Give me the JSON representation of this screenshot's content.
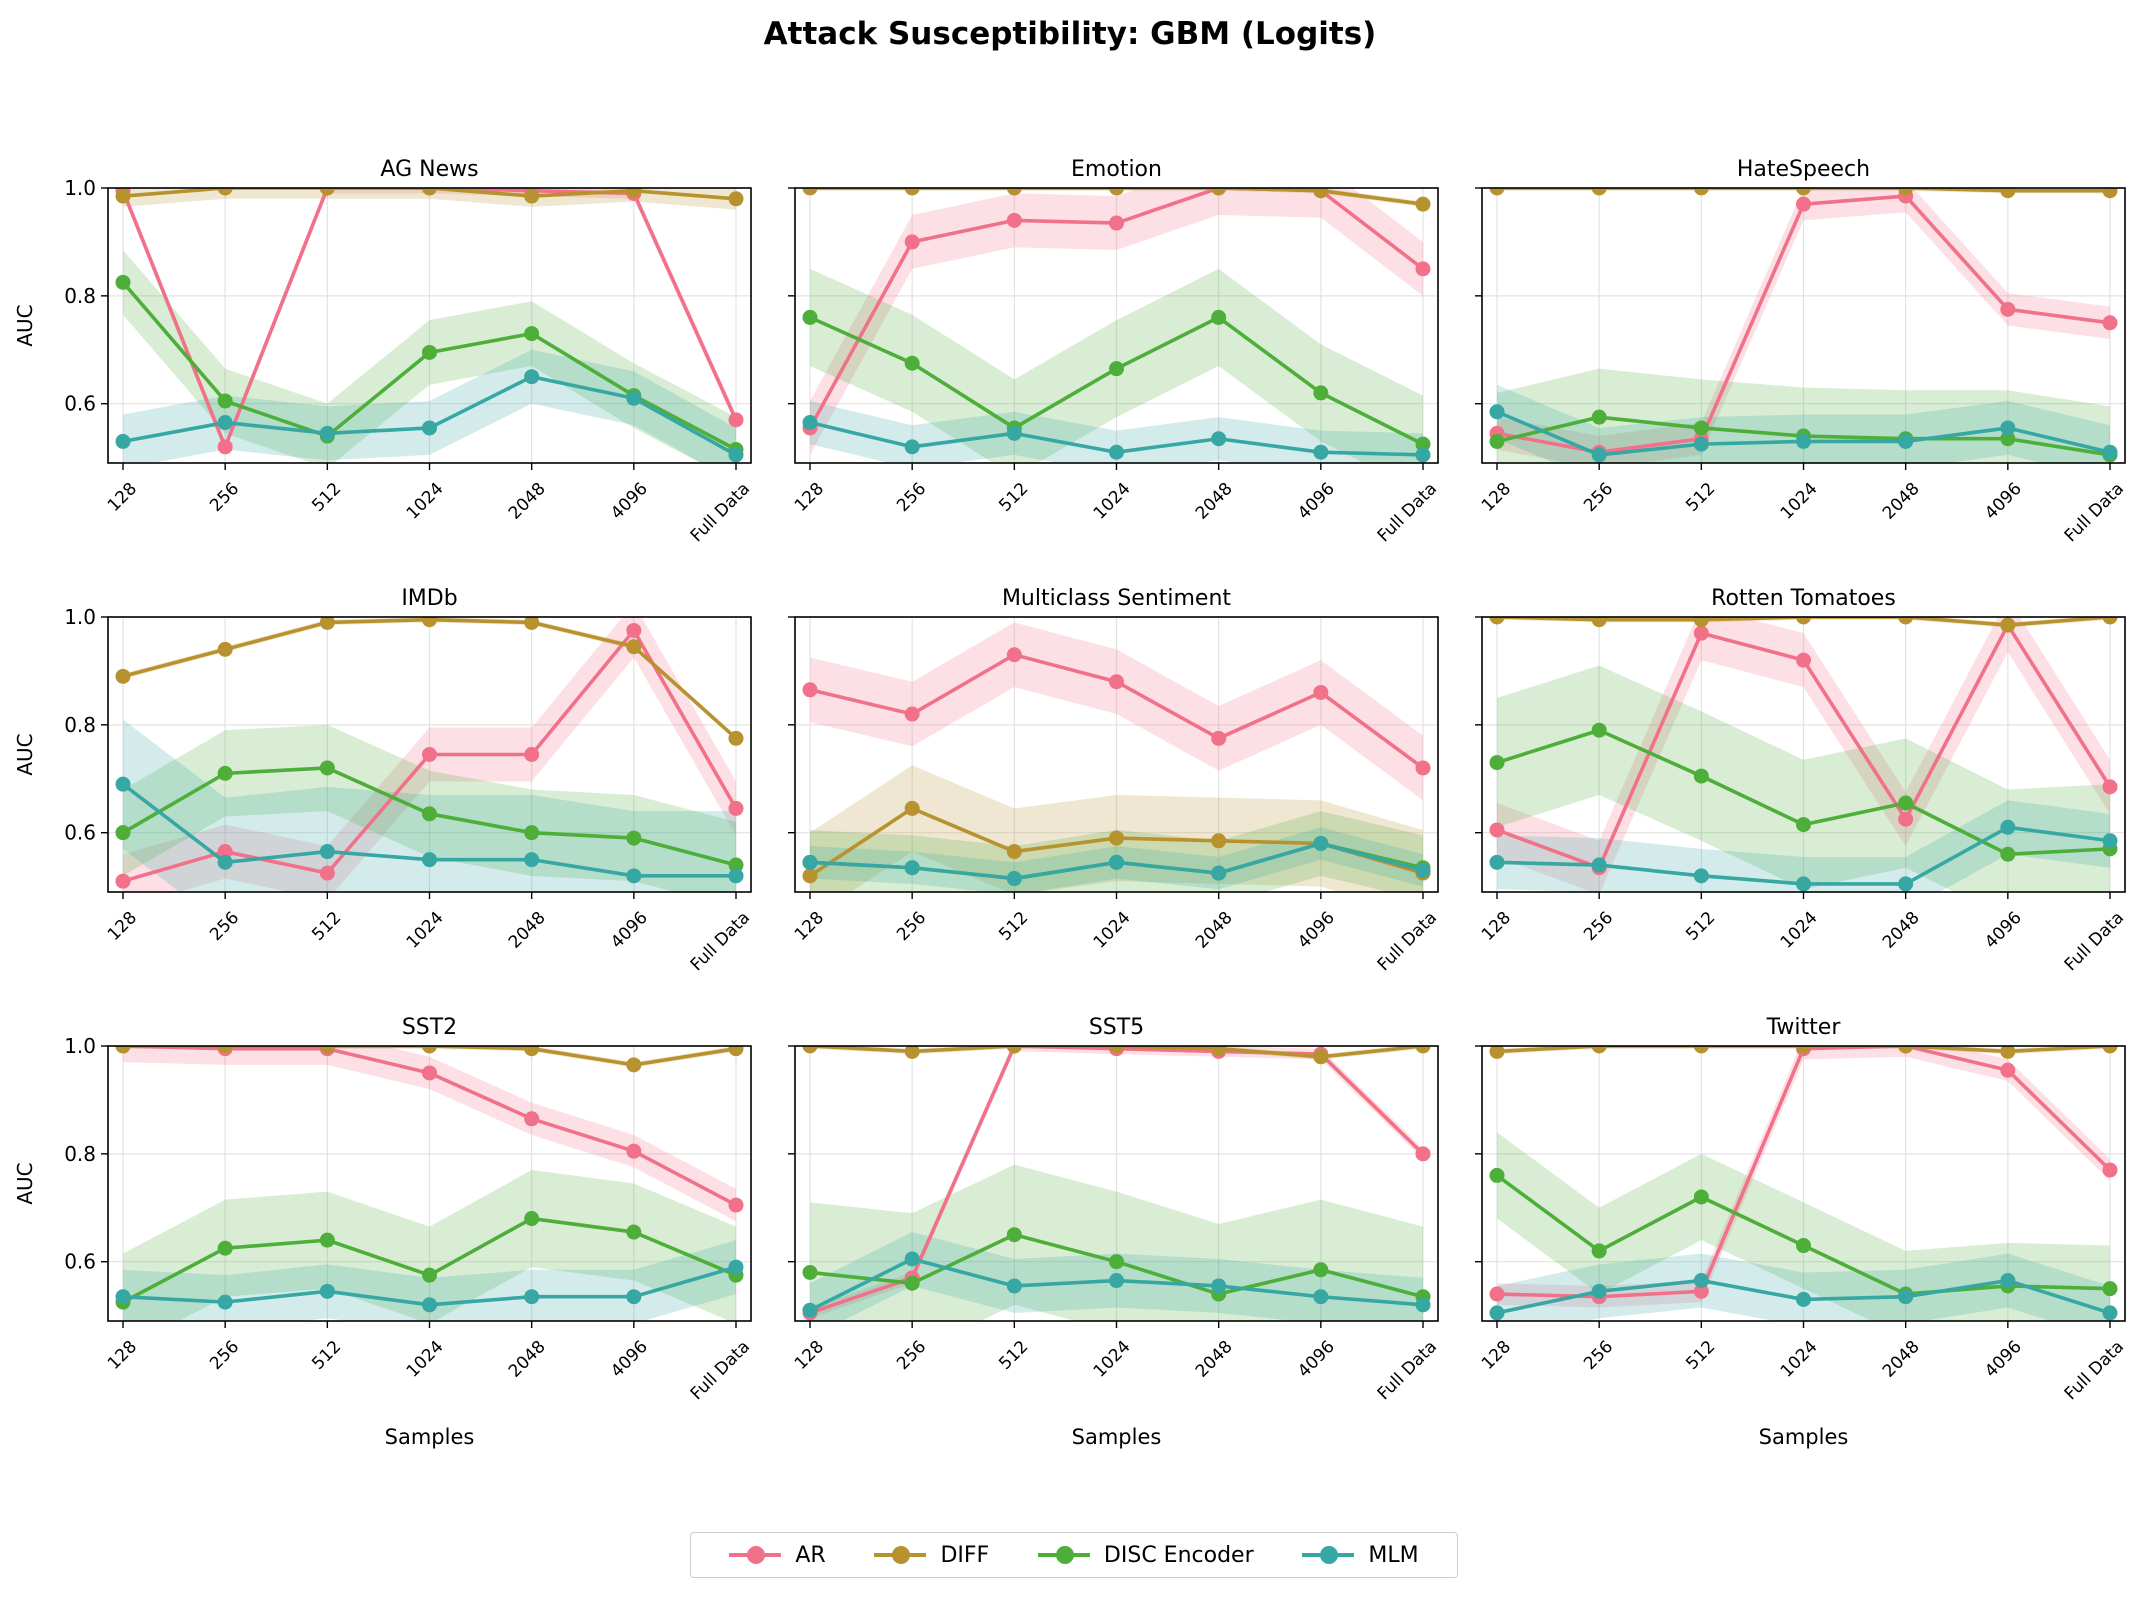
{
  "chart_data": {
    "type": "line",
    "title": "Attack Susceptibility: GBM (Logits)",
    "xlabel": "Samples",
    "ylabel": "AUC",
    "ylim": [
      0.49,
      1.0
    ],
    "yticks": [
      "0.6",
      "0.8",
      "1.0"
    ],
    "categories": [
      "128",
      "256",
      "512",
      "1024",
      "2048",
      "4096",
      "Full Data"
    ],
    "grid": true,
    "legend_position": "bottom-center",
    "series_styles": [
      {
        "name": "AR",
        "color": "#f07189"
      },
      {
        "name": "DIFF",
        "color": "#b8922e"
      },
      {
        "name": "DISC Encoder",
        "color": "#4eae3a"
      },
      {
        "name": "MLM",
        "color": "#37a7a4"
      }
    ],
    "panels": [
      {
        "title": "AG News",
        "series": [
          {
            "name": "AR",
            "values": [
              0.995,
              0.52,
              1.0,
              1.0,
              0.995,
              0.99,
              0.57
            ],
            "band": 0.01
          },
          {
            "name": "DIFF",
            "values": [
              0.985,
              1.0,
              1.0,
              1.0,
              0.985,
              0.995,
              0.98
            ],
            "band": 0.02
          },
          {
            "name": "DISC Encoder",
            "values": [
              0.825,
              0.605,
              0.54,
              0.695,
              0.73,
              0.615,
              0.515
            ],
            "band": 0.06
          },
          {
            "name": "MLM",
            "values": [
              0.53,
              0.565,
              0.545,
              0.555,
              0.65,
              0.61,
              0.505
            ],
            "band": 0.05
          }
        ]
      },
      {
        "title": "Emotion",
        "series": [
          {
            "name": "AR",
            "values": [
              0.555,
              0.9,
              0.94,
              0.935,
              1.0,
              0.995,
              0.85
            ],
            "band": 0.05
          },
          {
            "name": "DIFF",
            "values": [
              1.0,
              1.0,
              1.0,
              1.0,
              1.0,
              0.995,
              0.97
            ],
            "band": 0.005
          },
          {
            "name": "DISC Encoder",
            "values": [
              0.76,
              0.675,
              0.555,
              0.665,
              0.76,
              0.62,
              0.525
            ],
            "band": 0.09
          },
          {
            "name": "MLM",
            "values": [
              0.565,
              0.52,
              0.545,
              0.51,
              0.535,
              0.51,
              0.505
            ],
            "band": 0.04
          }
        ]
      },
      {
        "title": "HateSpeech",
        "series": [
          {
            "name": "AR",
            "values": [
              0.545,
              0.51,
              0.535,
              0.97,
              0.985,
              0.775,
              0.75
            ],
            "band": 0.03
          },
          {
            "name": "DIFF",
            "values": [
              1.0,
              1.0,
              1.0,
              1.0,
              1.0,
              0.995,
              0.995
            ],
            "band": 0.005
          },
          {
            "name": "DISC Encoder",
            "values": [
              0.53,
              0.575,
              0.555,
              0.54,
              0.535,
              0.535,
              0.505
            ],
            "band": 0.09
          },
          {
            "name": "MLM",
            "values": [
              0.585,
              0.505,
              0.525,
              0.53,
              0.53,
              0.555,
              0.51
            ],
            "band": 0.05
          }
        ]
      },
      {
        "title": "IMDb",
        "series": [
          {
            "name": "AR",
            "values": [
              0.51,
              0.565,
              0.525,
              0.745,
              0.745,
              0.975,
              0.645
            ],
            "band": 0.05
          },
          {
            "name": "DIFF",
            "values": [
              0.89,
              0.94,
              0.99,
              0.995,
              0.99,
              0.945,
              0.775
            ],
            "band": 0.005
          },
          {
            "name": "DISC Encoder",
            "values": [
              0.6,
              0.71,
              0.72,
              0.635,
              0.6,
              0.59,
              0.54
            ],
            "band": 0.08
          },
          {
            "name": "MLM",
            "values": [
              0.69,
              0.545,
              0.565,
              0.55,
              0.55,
              0.52,
              0.52
            ],
            "band": 0.12
          }
        ]
      },
      {
        "title": "Multiclass Sentiment",
        "series": [
          {
            "name": "AR",
            "values": [
              0.865,
              0.82,
              0.93,
              0.88,
              0.775,
              0.86,
              0.72
            ],
            "band": 0.06
          },
          {
            "name": "DIFF",
            "values": [
              0.52,
              0.645,
              0.565,
              0.59,
              0.585,
              0.58,
              0.525
            ],
            "band": 0.08
          },
          {
            "name": "DISC Encoder",
            "values": [
              0.545,
              0.535,
              0.515,
              0.545,
              0.525,
              0.58,
              0.535
            ],
            "band": 0.06
          },
          {
            "name": "MLM",
            "values": [
              0.545,
              0.535,
              0.515,
              0.545,
              0.525,
              0.58,
              0.53
            ],
            "band": 0.03
          }
        ]
      },
      {
        "title": "Rotten Tomatoes",
        "series": [
          {
            "name": "AR",
            "values": [
              0.605,
              0.535,
              0.97,
              0.92,
              0.625,
              0.985,
              0.685
            ],
            "band": 0.05
          },
          {
            "name": "DIFF",
            "values": [
              1.0,
              0.995,
              0.995,
              1.0,
              1.0,
              0.985,
              1.0
            ],
            "band": 0.005
          },
          {
            "name": "DISC Encoder",
            "values": [
              0.73,
              0.79,
              0.705,
              0.615,
              0.655,
              0.56,
              0.57
            ],
            "band": 0.12
          },
          {
            "name": "MLM",
            "values": [
              0.545,
              0.54,
              0.52,
              0.505,
              0.505,
              0.61,
              0.585
            ],
            "band": 0.05
          }
        ]
      },
      {
        "title": "SST2",
        "series": [
          {
            "name": "AR",
            "values": [
              1.0,
              0.995,
              0.995,
              0.95,
              0.865,
              0.805,
              0.705
            ],
            "band": 0.03
          },
          {
            "name": "DIFF",
            "values": [
              1.0,
              1.0,
              1.0,
              1.0,
              0.995,
              0.965,
              0.995
            ],
            "band": 0.005
          },
          {
            "name": "DISC Encoder",
            "values": [
              0.525,
              0.625,
              0.64,
              0.575,
              0.68,
              0.655,
              0.575
            ],
            "band": 0.09
          },
          {
            "name": "MLM",
            "values": [
              0.535,
              0.525,
              0.545,
              0.52,
              0.535,
              0.535,
              0.59
            ],
            "band": 0.05
          }
        ]
      },
      {
        "title": "SST5",
        "series": [
          {
            "name": "AR",
            "values": [
              0.505,
              0.57,
              1.0,
              0.995,
              0.99,
              0.985,
              0.8
            ],
            "band": 0.01
          },
          {
            "name": "DIFF",
            "values": [
              1.0,
              0.99,
              1.0,
              1.0,
              0.995,
              0.98,
              1.0
            ],
            "band": 0.005
          },
          {
            "name": "DISC Encoder",
            "values": [
              0.58,
              0.56,
              0.65,
              0.6,
              0.54,
              0.585,
              0.535
            ],
            "band": 0.13
          },
          {
            "name": "MLM",
            "values": [
              0.51,
              0.605,
              0.555,
              0.565,
              0.555,
              0.535,
              0.52
            ],
            "band": 0.05
          }
        ]
      },
      {
        "title": "Twitter",
        "series": [
          {
            "name": "AR",
            "values": [
              0.54,
              0.535,
              0.545,
              0.995,
              1.0,
              0.955,
              0.77
            ],
            "band": 0.02
          },
          {
            "name": "DIFF",
            "values": [
              0.99,
              1.0,
              1.0,
              1.0,
              1.0,
              0.99,
              1.0
            ],
            "band": 0.005
          },
          {
            "name": "DISC Encoder",
            "values": [
              0.76,
              0.62,
              0.72,
              0.63,
              0.54,
              0.555,
              0.55
            ],
            "band": 0.08
          },
          {
            "name": "MLM",
            "values": [
              0.505,
              0.545,
              0.565,
              0.53,
              0.535,
              0.565,
              0.505
            ],
            "band": 0.05
          }
        ]
      }
    ]
  }
}
